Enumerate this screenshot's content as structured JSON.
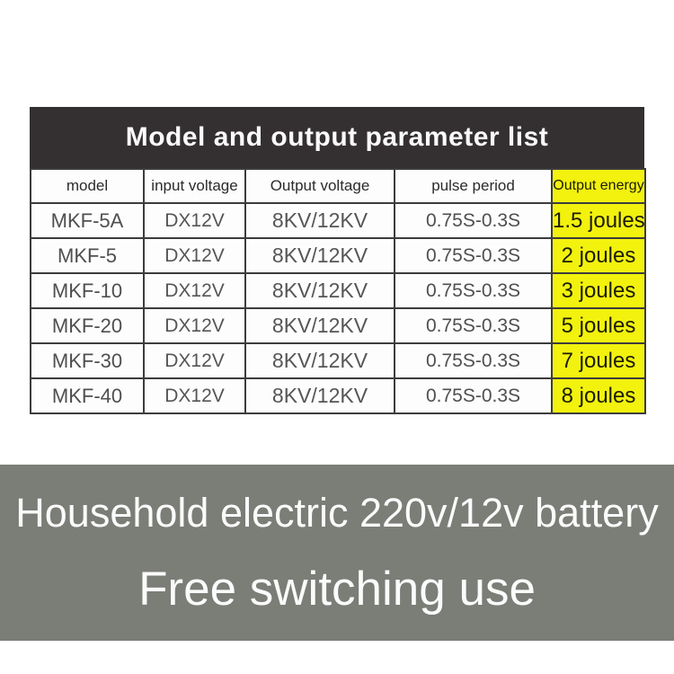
{
  "chart_data": {
    "type": "table",
    "title": "Model and output parameter list",
    "columns": [
      "model",
      "input voltage",
      "Output voltage",
      "pulse period",
      "Output energy"
    ],
    "rows": [
      [
        "MKF-5A",
        "DX12V",
        "8KV/12KV",
        "0.75S-0.3S",
        "1.5 joules"
      ],
      [
        "MKF-5",
        "DX12V",
        "8KV/12KV",
        "0.75S-0.3S",
        "2 joules"
      ],
      [
        "MKF-10",
        "DX12V",
        "8KV/12KV",
        "0.75S-0.3S",
        "3 joules"
      ],
      [
        "MKF-20",
        "DX12V",
        "8KV/12KV",
        "0.75S-0.3S",
        "5 joules"
      ],
      [
        "MKF-30",
        "DX12V",
        "8KV/12KV",
        "0.75S-0.3S",
        "7 joules"
      ],
      [
        "MKF-40",
        "DX12V",
        "8KV/12KV",
        "0.75S-0.3S",
        "8 joules"
      ]
    ],
    "highlight_column": "Output energy"
  },
  "banner": {
    "line1": "Household electric 220v/12v battery",
    "line2": "Free switching use"
  },
  "colors": {
    "title_bar_bg": "#343031",
    "title_text": "#fafafa",
    "highlight_column_bg": "#f2f20e",
    "table_border": "#3c3c3c",
    "banner_bg": "#7b7d77",
    "banner_text": "#fbfbfb",
    "page_bg": "#ffffff"
  }
}
